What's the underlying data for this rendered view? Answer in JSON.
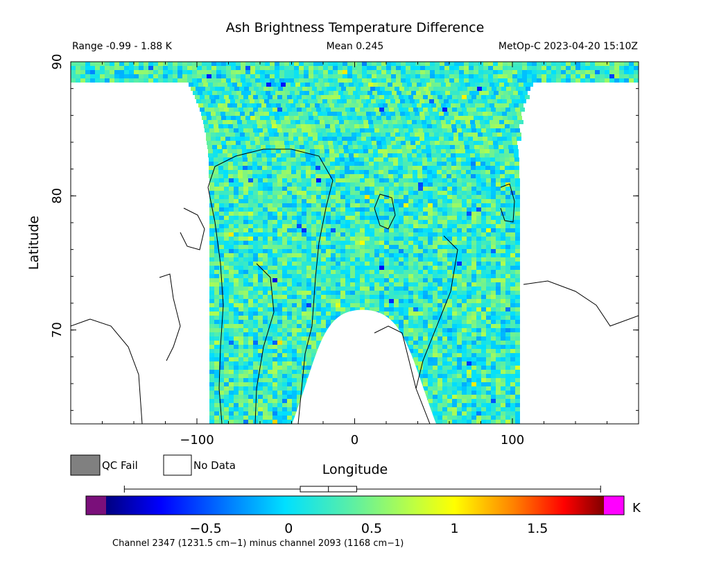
{
  "header": {
    "title": "Ash Brightness Temperature Difference",
    "range_text": "Range -0.99 - 1.88 K",
    "mean_text": "Mean 0.245",
    "satellite_time": "MetOp-C 2023-04-20 15:10Z"
  },
  "chart_data": {
    "type": "heatmap",
    "title": "Ash Brightness Temperature Difference",
    "xlabel": "Longitude",
    "ylabel": "Latitude",
    "xlim": [
      -180,
      180
    ],
    "ylim": [
      63,
      90
    ],
    "xticks": [
      -100,
      0,
      100
    ],
    "yticks": [
      70,
      80,
      90
    ],
    "xtick_labels": [
      "−100",
      "0",
      "100"
    ],
    "ytick_labels": [
      "70",
      "80",
      "90"
    ],
    "value_range": [
      -0.99,
      1.88
    ],
    "mean": 0.245,
    "units": "K",
    "colorbar": {
      "min": -1.1,
      "max": 1.9,
      "ticks": [
        -0.5,
        0,
        0.5,
        1,
        1.5
      ],
      "tick_labels": [
        "−0.5",
        "0",
        "0.5",
        "1",
        "1.5"
      ],
      "box": {
        "whisker_low": -0.99,
        "q1": 0.07,
        "median": 0.24,
        "q3": 0.41,
        "whisker_high": 1.88
      },
      "underflow_color": "#7a0f7a",
      "overflow_color": "#ff00ff"
    },
    "swath_bounds": {
      "lon_min": -92,
      "lon_max": 102,
      "polar_gap_lat": 88.5
    },
    "no_data_region": {
      "center_lon": 5,
      "peak_lat": 71.5,
      "base_lon_min": -40,
      "base_lon_max": 52
    }
  },
  "legend": {
    "qc_fail_label": "QC Fail",
    "no_data_label": "No Data",
    "qc_fail_color": "#808080",
    "no_data_color": "#ffffff"
  },
  "footer": {
    "channel_note": "Channel 2347 (1231.5 cm−1) minus channel 2093 (1168 cm−1)"
  }
}
